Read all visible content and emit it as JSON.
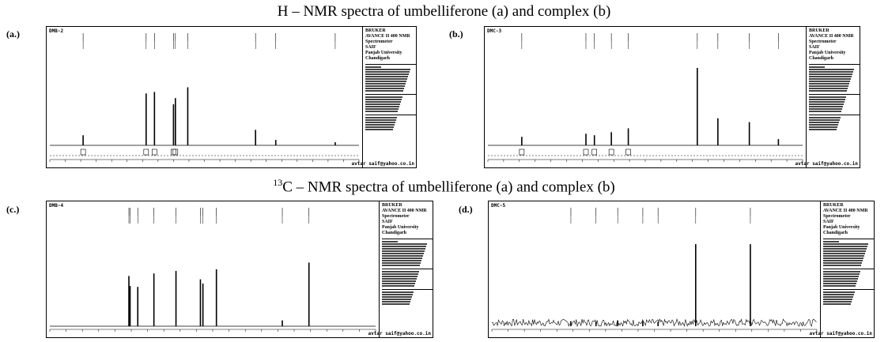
{
  "headings": {
    "h_nmr": "H – NMR spectra of umbelliferone (a) and complex (b)",
    "c13_sup": "13",
    "c13_rest": "C – NMR spectra of umbelliferone (a) and complex (b)"
  },
  "chart_data": [
    {
      "type": "line",
      "panel": "(a.)",
      "sample_id": "DMB-2",
      "nucleus": "1H",
      "x_reversed": true,
      "xlim": [
        12,
        -1
      ],
      "ylim": [
        0,
        1
      ],
      "peaks": [
        {
          "x": 10.6,
          "y": 0.13
        },
        {
          "x": 7.95,
          "y": 0.67
        },
        {
          "x": 7.6,
          "y": 0.69
        },
        {
          "x": 6.8,
          "y": 0.53
        },
        {
          "x": 6.72,
          "y": 0.61
        },
        {
          "x": 6.2,
          "y": 0.75
        },
        {
          "x": 3.35,
          "y": 0.2
        },
        {
          "x": 2.5,
          "y": 0.07
        },
        {
          "x": 0.0,
          "y": 0.04
        }
      ],
      "params_header": [
        "BRUKER",
        "AVANCE II 400 NMR",
        "Spectrometer",
        "SAIF",
        "Panjab University",
        "Chandigarh"
      ],
      "credit": "avtar saif@yahoo.co.in"
    },
    {
      "type": "line",
      "panel": "(b.)",
      "sample_id": "DMC-3",
      "nucleus": "1H",
      "x_reversed": true,
      "xlim": [
        12,
        -1
      ],
      "ylim": [
        0,
        1
      ],
      "peaks": [
        {
          "x": 10.6,
          "y": 0.11
        },
        {
          "x": 7.95,
          "y": 0.15
        },
        {
          "x": 7.6,
          "y": 0.13
        },
        {
          "x": 6.9,
          "y": 0.17
        },
        {
          "x": 6.2,
          "y": 0.22
        },
        {
          "x": 3.35,
          "y": 1.0
        },
        {
          "x": 2.5,
          "y": 0.35
        },
        {
          "x": 1.2,
          "y": 0.3
        },
        {
          "x": 0.0,
          "y": 0.08
        }
      ],
      "params_header": [
        "BRUKER",
        "AVANCE II 400 NMR",
        "Spectrometer",
        "SAIF",
        "Panjab University",
        "Chandigarh"
      ],
      "credit": "avtar saif@yahoo.co.in"
    },
    {
      "type": "line",
      "panel": "(c.)",
      "sample_id": "DMB-4",
      "nucleus": "13C",
      "x_reversed": true,
      "xlim": [
        215,
        -5
      ],
      "ylim": [
        0,
        1
      ],
      "peaks": [
        {
          "x": 161.6,
          "y": 0.6
        },
        {
          "x": 160.8,
          "y": 0.48
        },
        {
          "x": 155.6,
          "y": 0.47
        },
        {
          "x": 144.7,
          "y": 0.63
        },
        {
          "x": 129.8,
          "y": 0.66
        },
        {
          "x": 113.3,
          "y": 0.56
        },
        {
          "x": 111.6,
          "y": 0.51
        },
        {
          "x": 102.5,
          "y": 0.68
        },
        {
          "x": 58.0,
          "y": 0.07
        },
        {
          "x": 40.0,
          "y": 0.76
        }
      ],
      "params_header": [
        "BRUKER",
        "AVANCE II 400 NMR",
        "Spectrometer",
        "SAIF",
        "Panjab University",
        "Chandigarh"
      ],
      "credit": "avtar saif@yahoo.co.in"
    },
    {
      "type": "line",
      "panel": "(d.)",
      "sample_id": "DMC-5",
      "nucleus": "13C",
      "x_reversed": true,
      "xlim": [
        215,
        -5
      ],
      "ylim": [
        0,
        1
      ],
      "peaks": [
        {
          "x": 161.5,
          "y": 0.06
        },
        {
          "x": 144.5,
          "y": 0.05
        },
        {
          "x": 129.8,
          "y": 0.07
        },
        {
          "x": 112.8,
          "y": 0.06
        },
        {
          "x": 102.5,
          "y": 0.05
        },
        {
          "x": 77.0,
          "y": 0.98
        },
        {
          "x": 40.0,
          "y": 0.98
        }
      ],
      "noise": true,
      "params_header": [
        "BRUKER",
        "AVANCE II 400 NMR",
        "Spectrometer",
        "SAIF",
        "Panjab University",
        "Chandigarh"
      ],
      "credit": "avtar saif@yahoo.co.in"
    }
  ]
}
